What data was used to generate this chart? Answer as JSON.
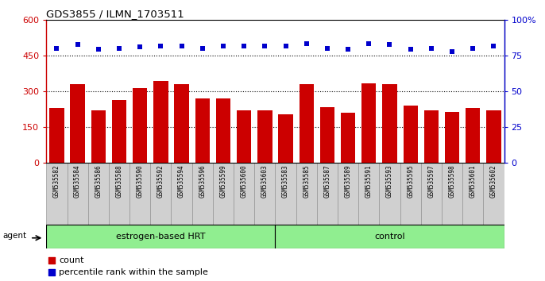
{
  "title": "GDS3855 / ILMN_1703511",
  "categories": [
    "GSM535582",
    "GSM535584",
    "GSM535586",
    "GSM535588",
    "GSM535590",
    "GSM535592",
    "GSM535594",
    "GSM535596",
    "GSM535599",
    "GSM535600",
    "GSM535603",
    "GSM535583",
    "GSM535585",
    "GSM535587",
    "GSM535589",
    "GSM535591",
    "GSM535593",
    "GSM535595",
    "GSM535597",
    "GSM535598",
    "GSM535601",
    "GSM535602"
  ],
  "bar_values": [
    230,
    330,
    220,
    265,
    315,
    345,
    330,
    270,
    270,
    220,
    220,
    205,
    330,
    235,
    210,
    335,
    330,
    240,
    220,
    215,
    230,
    220
  ],
  "dot_values_left_scale": [
    480,
    495,
    475,
    480,
    485,
    490,
    490,
    480,
    490,
    490,
    490,
    490,
    500,
    480,
    475,
    500,
    495,
    475,
    480,
    465,
    480,
    490
  ],
  "bar_color": "#cc0000",
  "dot_color": "#0000cc",
  "ylim_left": [
    0,
    600
  ],
  "ylim_right": [
    0,
    100
  ],
  "yticks_left": [
    0,
    150,
    300,
    450,
    600
  ],
  "yticks_right": [
    0,
    25,
    50,
    75,
    100
  ],
  "ytick_labels_left": [
    "0",
    "150",
    "300",
    "450",
    "600"
  ],
  "ytick_labels_right": [
    "0",
    "25",
    "50",
    "75",
    "100%"
  ],
  "hlines": [
    150,
    300,
    450
  ],
  "group1_label": "estrogen-based HRT",
  "group2_label": "control",
  "group1_count": 11,
  "group2_count": 11,
  "agent_label": "agent",
  "legend_bar": "count",
  "legend_dot": "percentile rank within the sample",
  "plot_bg_color": "#ffffff",
  "xtick_bg_color": "#d0d0d0",
  "group_bg_color": "#90EE90"
}
